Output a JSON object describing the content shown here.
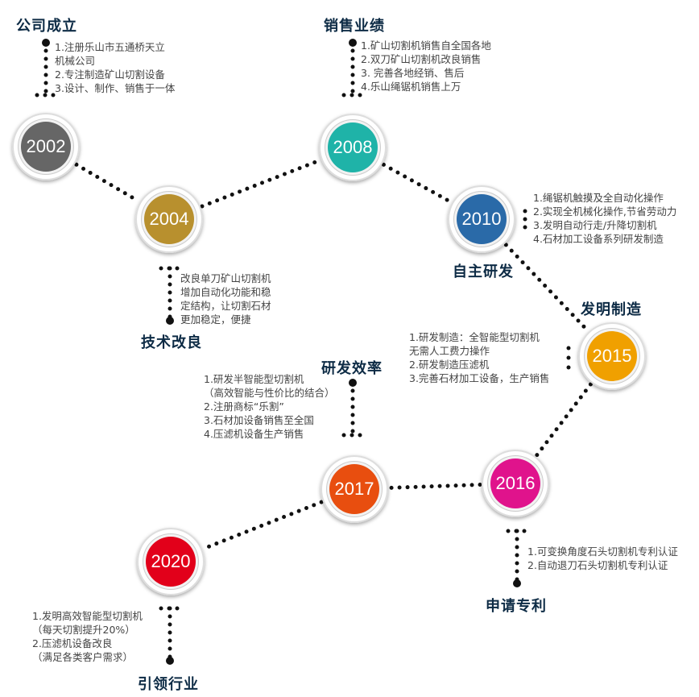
{
  "milestones": [
    {
      "year": "2002",
      "title": "公司成立",
      "color": "#666666",
      "lines": [
        "1.注册乐山市五通桥天立",
        "机械公司",
        "2.专注制造矿山切割设备",
        "3.设计、制作、销售于一体"
      ]
    },
    {
      "year": "2004",
      "title": "技术改良",
      "color": "#b8902e",
      "lines": [
        "改良单刀矿山切割机",
        "增加自动化功能和稳",
        "定结构，让切割石材",
        "更加稳定，便捷"
      ]
    },
    {
      "year": "2008",
      "title": "销售业绩",
      "color": "#1fb3a8",
      "lines": [
        "1.矿山切割机销售自全国各地",
        "2.双刀矿山切割机改良销售",
        "3. 完善各地经销、售后",
        "4.乐山绳锯机销售上万"
      ]
    },
    {
      "year": "2010",
      "title": "自主研发",
      "color": "#2a6aa8",
      "lines": [
        "1.绳锯机触摸及全自动化操作",
        "2.实现全机械化操作,节省劳动力",
        "3.发明自动行走/升降切割机",
        "4.石材加工设备系列研发制造"
      ]
    },
    {
      "year": "2015",
      "title": "发明制造",
      "color": "#f0a000",
      "lines": [
        "1.研发制造：全智能型切割机",
        "无需人工费力操作",
        "2.研发制造压滤机",
        "3.完善石材加工设备，生产销售"
      ]
    },
    {
      "year": "2016",
      "title": "申请专利",
      "color": "#e0138c",
      "lines": [
        "1.可变换角度石头切割机专利认证",
        "2.自动退刀石头切割机专利认证"
      ]
    },
    {
      "year": "2017",
      "title": "研发效率",
      "color": "#e84e0f",
      "lines": [
        "1.研发半智能型切割机",
        "（高效智能与性价比的结合）",
        "2.注册商标“乐割”",
        "3.石材加设备销售至全国",
        "4.压滤机设备生产销售"
      ]
    },
    {
      "year": "2020",
      "title": "引领行业",
      "color": "#e2001a",
      "lines": [
        "1.发明高效智能型切割机",
        "（每天切割提升20%）",
        "2.压滤机设备改良",
        "（满足各类客户需求）"
      ]
    }
  ]
}
